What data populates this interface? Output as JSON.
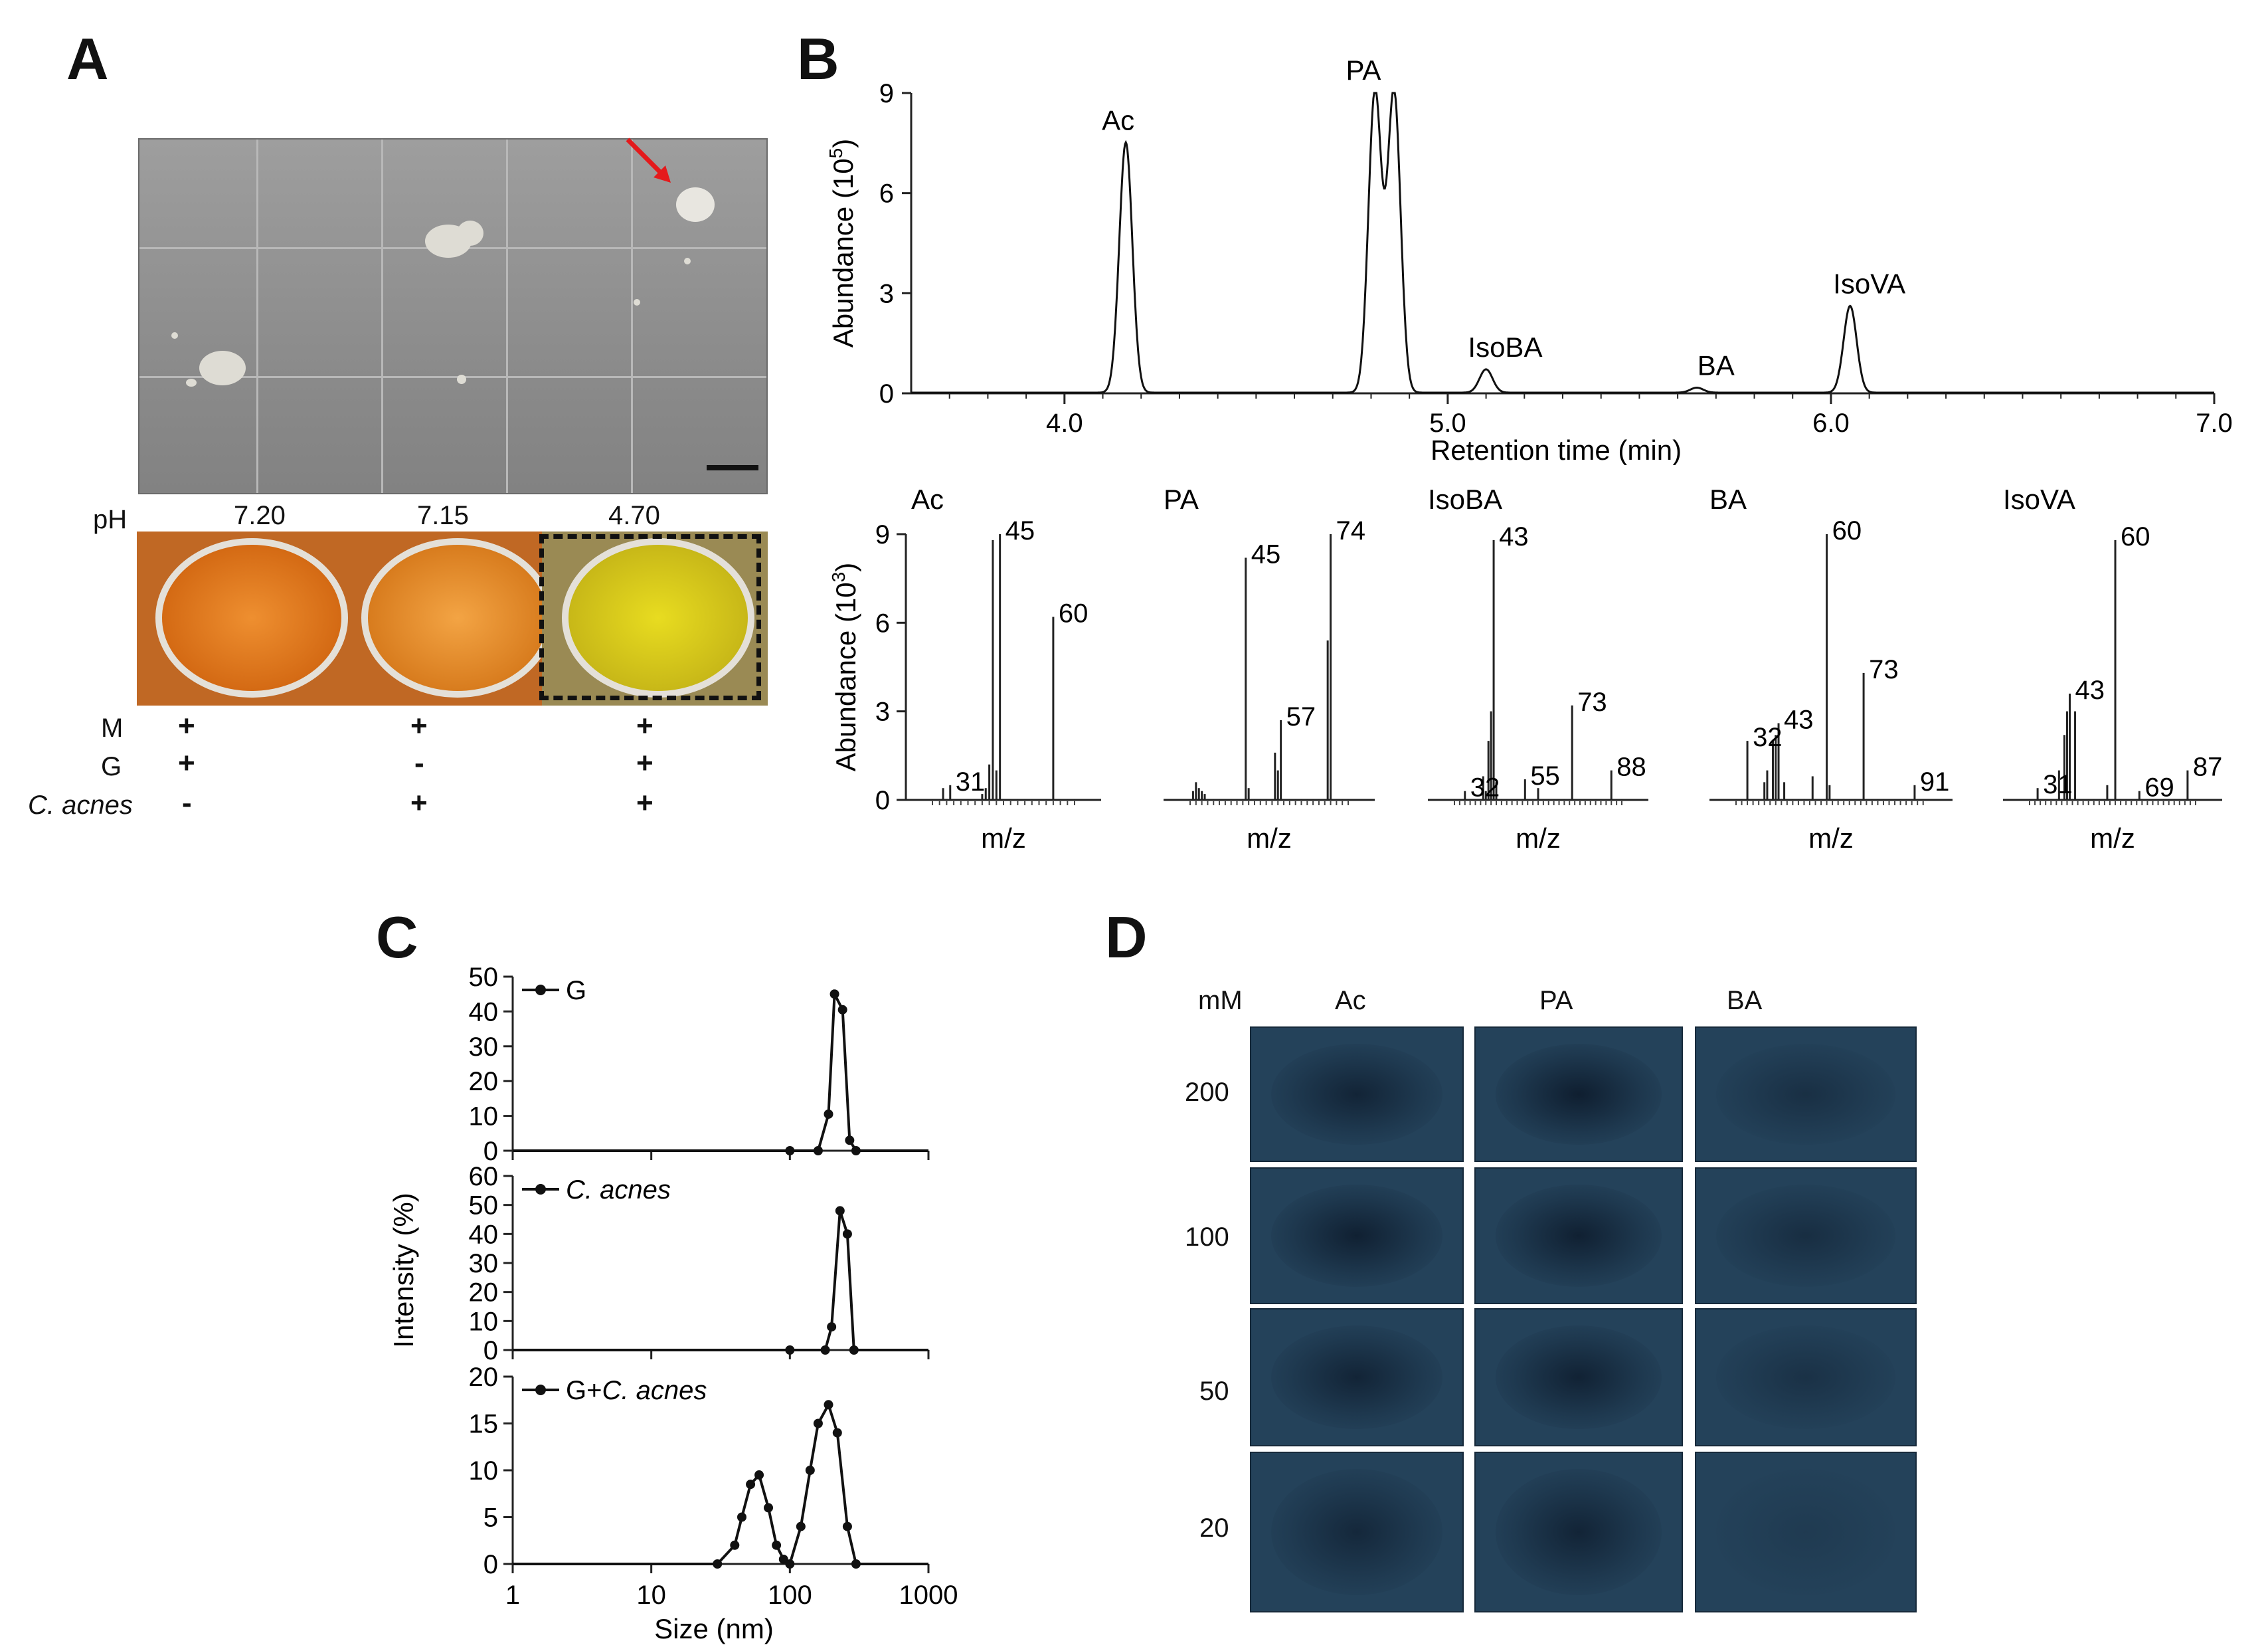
{
  "panels": {
    "a": "A",
    "b": "B",
    "c": "C",
    "d": "D"
  },
  "panel_a": {
    "ph_label": "pH",
    "ph_values": [
      "7.20",
      "7.15",
      "4.70"
    ],
    "row_labels": {
      "m": "M",
      "g": "G",
      "c": "C. acnes"
    },
    "rows": {
      "m": [
        "+",
        "+",
        "+"
      ],
      "g": [
        "+",
        "-",
        "+"
      ],
      "c": [
        "-",
        "+",
        "+"
      ]
    },
    "colors": {
      "orange_well": "#e07a1e",
      "yellow_well": "#d8c818",
      "arrow": "#e41a1c"
    }
  },
  "chart_data": [
    {
      "id": "B-chromatogram",
      "type": "line",
      "xlabel": "Retention time (min)",
      "ylabel": "Abundance (10",
      "ylabel_sup": "5",
      "ylabel_end": ")",
      "xlim": [
        3.6,
        7.0
      ],
      "ylim": [
        0,
        9
      ],
      "xticks": [
        "4.0",
        "5.0",
        "6.0",
        "7.0"
      ],
      "yticks": [
        "0",
        "3",
        "6",
        "9"
      ],
      "peaks": [
        {
          "label": "Ac",
          "rt": 4.16,
          "height": 7.5
        },
        {
          "label": "PA",
          "rt": 4.81,
          "height": 9.0
        },
        {
          "label": "PA",
          "rt": 4.86,
          "height": 9.0
        },
        {
          "label": "IsoBA",
          "rt": 5.1,
          "height": 0.7
        },
        {
          "label": "BA",
          "rt": 5.65,
          "height": 0.15
        },
        {
          "label": "IsoVA",
          "rt": 6.05,
          "height": 2.6
        }
      ],
      "peak_labels": [
        "Ac",
        "PA",
        "IsoBA",
        "BA",
        "IsoVA"
      ]
    },
    {
      "id": "B-mass-spectra",
      "type": "bar",
      "ylabel": "Abundance (10",
      "ylabel_sup": "3",
      "ylabel_end": ")",
      "xlabel": "m/z",
      "ylim": [
        0,
        9
      ],
      "yticks": [
        "0",
        "3",
        "6",
        "9"
      ],
      "spectra": [
        {
          "name": "Ac",
          "mz_min": 26,
          "mz_max": 66,
          "peaks": [
            [
              29,
              0.4
            ],
            [
              31,
              0.5
            ],
            [
              40,
              0.2
            ],
            [
              41,
              0.4
            ],
            [
              42,
              1.2
            ],
            [
              43,
              8.8
            ],
            [
              44,
              1.0
            ],
            [
              45,
              9.0
            ],
            [
              60,
              6.2
            ]
          ],
          "labels": [
            [
              "31",
              31,
              0.5
            ],
            [
              "45",
              45,
              9.0
            ],
            [
              "60",
              60,
              6.2
            ]
          ]
        },
        {
          "name": "PA",
          "mz_min": 26,
          "mz_max": 80,
          "peaks": [
            [
              27,
              0.3
            ],
            [
              28,
              0.6
            ],
            [
              29,
              0.4
            ],
            [
              30,
              0.3
            ],
            [
              31,
              0.2
            ],
            [
              45,
              8.2
            ],
            [
              46,
              0.4
            ],
            [
              55,
              1.6
            ],
            [
              56,
              1.0
            ],
            [
              57,
              2.7
            ],
            [
              73,
              5.4
            ],
            [
              74,
              9.0
            ]
          ],
          "labels": [
            [
              "45",
              45,
              8.2
            ],
            [
              "57",
              57,
              2.7
            ],
            [
              "74",
              74,
              9.0
            ]
          ]
        },
        {
          "name": "IsoBA",
          "mz_min": 28,
          "mz_max": 92,
          "peaks": [
            [
              32,
              0.3
            ],
            [
              39,
              0.8
            ],
            [
              40,
              0.3
            ],
            [
              41,
              2.0
            ],
            [
              42,
              3.0
            ],
            [
              43,
              8.8
            ],
            [
              44,
              0.6
            ],
            [
              55,
              0.7
            ],
            [
              60,
              0.4
            ],
            [
              73,
              3.2
            ],
            [
              88,
              1.0
            ]
          ],
          "labels": [
            [
              "32",
              32,
              0.3
            ],
            [
              "43",
              43,
              8.8
            ],
            [
              "55",
              55,
              0.7
            ],
            [
              "73",
              73,
              3.2
            ],
            [
              "88",
              88,
              1.0
            ]
          ]
        },
        {
          "name": "BA",
          "mz_min": 28,
          "mz_max": 95,
          "peaks": [
            [
              32,
              2.0
            ],
            [
              38,
              0.6
            ],
            [
              39,
              1.0
            ],
            [
              41,
              2.0
            ],
            [
              42,
              2.2
            ],
            [
              43,
              2.6
            ],
            [
              45,
              0.6
            ],
            [
              55,
              0.8
            ],
            [
              60,
              9.0
            ],
            [
              61,
              0.5
            ],
            [
              73,
              4.3
            ],
            [
              91,
              0.5
            ]
          ],
          "labels": [
            [
              "32",
              32,
              2.0
            ],
            [
              "43",
              43,
              2.6
            ],
            [
              "60",
              60,
              9.0
            ],
            [
              "73",
              73,
              4.3
            ],
            [
              "91",
              91,
              0.5
            ]
          ]
        },
        {
          "name": "IsoVA",
          "mz_min": 28,
          "mz_max": 90,
          "peaks": [
            [
              31,
              0.4
            ],
            [
              39,
              1.0
            ],
            [
              41,
              2.2
            ],
            [
              42,
              3.0
            ],
            [
              43,
              3.6
            ],
            [
              45,
              3.0
            ],
            [
              57,
              0.5
            ],
            [
              60,
              8.8
            ],
            [
              69,
              0.3
            ],
            [
              87,
              1.0
            ]
          ],
          "labels": [
            [
              "31",
              31,
              0.4
            ],
            [
              "43",
              43,
              3.6
            ],
            [
              "60",
              60,
              8.8
            ],
            [
              "69",
              69,
              0.3
            ],
            [
              "87",
              87,
              1.0
            ]
          ]
        }
      ]
    },
    {
      "id": "C-size-distribution",
      "type": "line",
      "xlabel": "Size (nm)",
      "ylabel": "Intensity (%)",
      "xscale": "log",
      "xlim": [
        1,
        1000
      ],
      "xticks": [
        "1",
        "10",
        "100",
        "1000"
      ],
      "subplots": [
        {
          "name": "G",
          "name_italic": "",
          "ylim": [
            0,
            50
          ],
          "yticks": [
            "0",
            "10",
            "20",
            "30",
            "40",
            "50"
          ],
          "points": [
            [
              1,
              0
            ],
            [
              10,
              0
            ],
            [
              100,
              0
            ],
            [
              160,
              0
            ],
            [
              190,
              10.5
            ],
            [
              210,
              45
            ],
            [
              240,
              40.5
            ],
            [
              270,
              3
            ],
            [
              300,
              0
            ],
            [
              1000,
              0
            ]
          ]
        },
        {
          "name": "",
          "name_italic": "C. acnes",
          "ylim": [
            0,
            60
          ],
          "yticks": [
            "0",
            "10",
            "20",
            "30",
            "40",
            "50",
            "60"
          ],
          "points": [
            [
              1,
              0
            ],
            [
              10,
              0
            ],
            [
              100,
              0
            ],
            [
              180,
              0
            ],
            [
              200,
              8
            ],
            [
              230,
              48
            ],
            [
              260,
              40
            ],
            [
              290,
              0
            ],
            [
              1000,
              0
            ]
          ]
        },
        {
          "name": "G+",
          "name_italic": "C. acnes",
          "ylim": [
            0,
            20
          ],
          "yticks": [
            "0",
            "5",
            "10",
            "15",
            "20"
          ],
          "points": [
            [
              1,
              0
            ],
            [
              10,
              0
            ],
            [
              30,
              0
            ],
            [
              40,
              2
            ],
            [
              45,
              5
            ],
            [
              52,
              8.5
            ],
            [
              60,
              9.5
            ],
            [
              70,
              6
            ],
            [
              80,
              2
            ],
            [
              90,
              0.5
            ],
            [
              100,
              0
            ],
            [
              120,
              4
            ],
            [
              140,
              10
            ],
            [
              160,
              15
            ],
            [
              190,
              17
            ],
            [
              220,
              14
            ],
            [
              260,
              4
            ],
            [
              300,
              0
            ],
            [
              1000,
              0
            ]
          ]
        }
      ]
    }
  ],
  "panel_d": {
    "unit": "mM",
    "columns": [
      "Ac",
      "PA",
      "BA"
    ],
    "rows": [
      "200",
      "100",
      "50",
      "20"
    ],
    "colors": {
      "tile": "#24425a"
    }
  }
}
